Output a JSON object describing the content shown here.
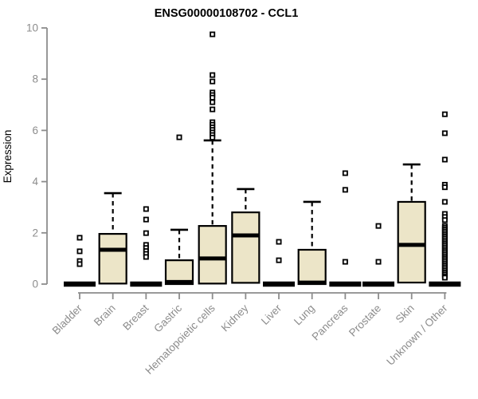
{
  "chart_data": {
    "type": "boxplot",
    "title": "ENSG00000108702 - CCL1",
    "ylabel": "Expression",
    "xlabel": "",
    "ylim": [
      0,
      10
    ],
    "yticks": [
      0,
      2,
      4,
      6,
      8,
      10
    ],
    "grid": false,
    "legend": "none",
    "categories": [
      "Bladder",
      "Brain",
      "Breast",
      "Gastric",
      "Hematopoietic cells",
      "Kidney",
      "Liver",
      "Lung",
      "Pancreas",
      "Prostate",
      "Skin",
      "Unknown / Other"
    ],
    "boxes": [
      {
        "category": "Bladder",
        "collapsed": true,
        "q1": 0,
        "median": 0,
        "q3": 0,
        "whisker_low": 0,
        "whisker_high": 0,
        "outliers": [
          1.81,
          1.28,
          0.9,
          0.78
        ]
      },
      {
        "category": "Brain",
        "collapsed": false,
        "q1": 0.02,
        "median": 1.34,
        "q3": 1.96,
        "whisker_low": 0,
        "whisker_high": 3.55,
        "outliers": []
      },
      {
        "category": "Breast",
        "collapsed": true,
        "q1": 0,
        "median": 0,
        "q3": 0,
        "whisker_low": 0,
        "whisker_high": 0,
        "outliers": [
          2.93,
          2.52,
          1.99,
          1.53,
          1.41,
          1.29,
          1.18,
          1.06
        ]
      },
      {
        "category": "Gastric",
        "collapsed": false,
        "q1": 0,
        "median": 0.08,
        "q3": 0.93,
        "whisker_low": 0,
        "whisker_high": 2.12,
        "outliers": [
          5.73
        ]
      },
      {
        "category": "Hematopoietic cells",
        "collapsed": false,
        "q1": 0.02,
        "median": 1.0,
        "q3": 2.27,
        "whisker_low": 0,
        "whisker_high": 5.61,
        "outliers": [
          9.75,
          8.16,
          7.91,
          7.48,
          7.38,
          7.28,
          7.1,
          6.82,
          6.32,
          6.22,
          6.12,
          6.02,
          5.92,
          5.82,
          5.72
        ]
      },
      {
        "category": "Kidney",
        "collapsed": false,
        "q1": 0.05,
        "median": 1.9,
        "q3": 2.8,
        "whisker_low": 0,
        "whisker_high": 3.71,
        "outliers": []
      },
      {
        "category": "Liver",
        "collapsed": true,
        "q1": 0,
        "median": 0,
        "q3": 0,
        "whisker_low": 0,
        "whisker_high": 0,
        "outliers": [
          1.65,
          0.93
        ]
      },
      {
        "category": "Lung",
        "collapsed": false,
        "q1": 0,
        "median": 0.06,
        "q3": 1.34,
        "whisker_low": 0,
        "whisker_high": 3.21,
        "outliers": []
      },
      {
        "category": "Pancreas",
        "collapsed": true,
        "q1": 0,
        "median": 0,
        "q3": 0,
        "whisker_low": 0,
        "whisker_high": 0,
        "outliers": [
          4.33,
          3.68,
          0.87
        ]
      },
      {
        "category": "Prostate",
        "collapsed": true,
        "q1": 0,
        "median": 0,
        "q3": 0,
        "whisker_low": 0,
        "whisker_high": 0,
        "outliers": [
          2.27,
          0.87
        ]
      },
      {
        "category": "Skin",
        "collapsed": false,
        "q1": 0.06,
        "median": 1.53,
        "q3": 3.21,
        "whisker_low": 0,
        "whisker_high": 4.67,
        "outliers": []
      },
      {
        "category": "Unknown / Other",
        "collapsed": true,
        "q1": 0,
        "median": 0,
        "q3": 0,
        "whisker_low": 0,
        "whisker_high": 0,
        "outliers": [
          6.63,
          5.89,
          4.86,
          3.88,
          3.78,
          3.21,
          2.74,
          2.62,
          2.5,
          2.27,
          2.2,
          2.13,
          2.06,
          1.99,
          1.92,
          1.85,
          1.78,
          1.71,
          1.64,
          1.57,
          1.5,
          1.43,
          1.36,
          1.29,
          1.22,
          1.15,
          1.08,
          1.01,
          0.94,
          0.87,
          0.8,
          0.73,
          0.66,
          0.59,
          0.52,
          0.45,
          0.38,
          0.31,
          0.25
        ]
      }
    ],
    "colors": {
      "box_fill": "#ece5c8",
      "box_stroke": "#000000",
      "median_color": "#000000",
      "whisker_color": "#000000",
      "outlier_stroke": "#000000",
      "outlier_fill": "#ffffff",
      "axis_color": "#8c8c8c",
      "label_color": "#8c8c8c",
      "title_color": "#000000",
      "background": "#ffffff"
    }
  }
}
